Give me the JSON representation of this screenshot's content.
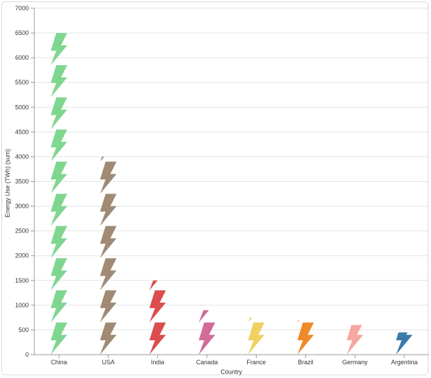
{
  "chart_data": {
    "type": "bar",
    "mark": "pictogram",
    "icon": "lightning-bolt-icon",
    "unit_per_icon": 650,
    "xlabel": "Country",
    "ylabel": "Energy Use (TWh) (sum)",
    "ylim": [
      0,
      7000
    ],
    "yticks": [
      0,
      500,
      1000,
      1500,
      2000,
      2500,
      3000,
      3500,
      4000,
      4500,
      5000,
      5500,
      6000,
      6500,
      7000
    ],
    "grid": true,
    "categories": [
      "China",
      "USA",
      "India",
      "Canada",
      "France",
      "Brazil",
      "Germany",
      "Argentina"
    ],
    "values": [
      6500,
      4000,
      1500,
      900,
      750,
      700,
      600,
      450
    ],
    "colors": [
      "#7fd68f",
      "#a08a73",
      "#dc4d4d",
      "#d06b9a",
      "#f0d060",
      "#ee8a2a",
      "#f6a7a0",
      "#3b7bab"
    ]
  }
}
